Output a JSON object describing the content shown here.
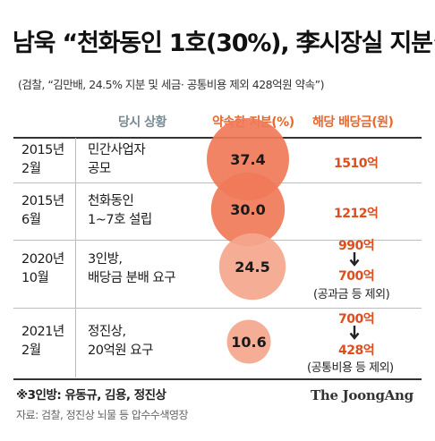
{
  "header": {
    "title": "남욱 “천화동인 1호(30%), 李시장실 지분”",
    "subtitle": "(검찰, “김만배, 24.5% 지분 및 세금· 공통비용 제외 428억원 약속”)"
  },
  "table": {
    "columns": [
      "당시 상황",
      "약속한 지분(%)",
      "해당 배당금(원)"
    ],
    "rows": [
      {
        "date": [
          "2015년",
          "2월"
        ],
        "status": [
          "민간사업자",
          "공모"
        ],
        "stake_label": "37.4",
        "amounts": [
          "1510억"
        ],
        "notes": []
      },
      {
        "date": [
          "2015년",
          "6월"
        ],
        "status": [
          "천화동인",
          "1~7호 설립"
        ],
        "stake_label": "30.0",
        "amounts": [
          "1212억"
        ],
        "notes": []
      },
      {
        "date": [
          "2020년",
          "10월"
        ],
        "status": [
          "3인방,",
          "배당금 분배 요구"
        ],
        "stake_label": "24.5",
        "amounts": [
          "990억",
          "700억"
        ],
        "notes": [
          "(공과금 등 제외)"
        ]
      },
      {
        "date": [
          "2021년",
          "2월"
        ],
        "status": [
          "정진상,",
          "20억원 요구"
        ],
        "stake_label": "10.6",
        "amounts": [
          "700억",
          "428억"
        ],
        "notes": [
          "(공통비용 등 제외)"
        ]
      }
    ]
  },
  "chart_data": {
    "type": "bubble",
    "title": "남욱 “천화동인 1호(30%), 李시장실 지분”",
    "categories": [
      "2015년 2월",
      "2015년 6월",
      "2020년 10월",
      "2021년 2월"
    ],
    "series": [
      {
        "name": "약속한 지분(%)",
        "values": [
          37.4,
          30.0,
          24.5,
          10.6
        ]
      }
    ],
    "dividends": [
      "1510억",
      "1212억",
      "990억 → 700억",
      "700억 → 428억"
    ],
    "colors": {
      "bubble_dark": "#f07a58",
      "bubble_light": "#f5a68d",
      "accent": "#e04d1c"
    }
  },
  "footer": {
    "footnote": "※3인방: 유동규, 김용, 정진상",
    "source": "자료: 검찰, 정진상 뇌물 등 압수수색영장",
    "brand": "The JoongAng"
  }
}
